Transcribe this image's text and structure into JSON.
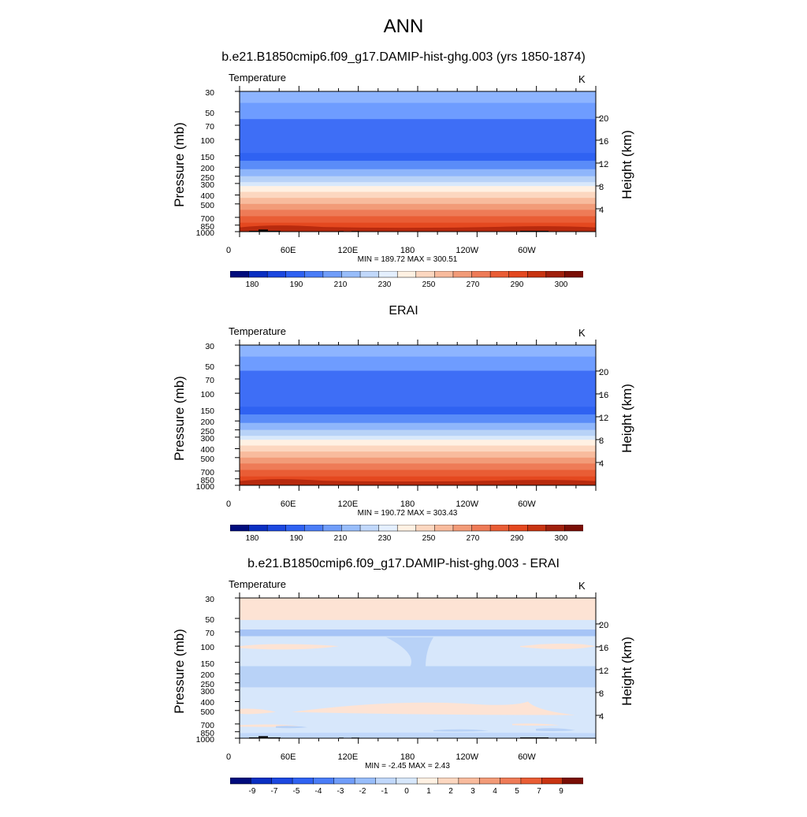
{
  "title": "ANN",
  "chart_data": [
    {
      "type": "heatmap",
      "title": "b.e21.B1850cmip6.f09_g17.DAMIP-hist-ghg.003 (yrs 1850-1874)",
      "variable": "Temperature",
      "units": "K",
      "ylabel": "Pressure (mb)",
      "y2label": "Height (km)",
      "pressure_ticks": [
        "30",
        "50",
        "70",
        "100",
        "150",
        "200",
        "250",
        "300",
        "400",
        "500",
        "700",
        "850",
        "1000"
      ],
      "height_ticks": [
        "20",
        "16",
        "12",
        "8",
        "4"
      ],
      "x_ticks": [
        "0",
        "60E",
        "120E",
        "180",
        "120W",
        "60W"
      ],
      "stats": "MIN = 189.72  MAX = 300.51",
      "colorbar_labels": [
        "180",
        "190",
        "210",
        "230",
        "250",
        "270",
        "290",
        "300"
      ],
      "profile": [
        {
          "p": 30,
          "color": "#8db4ff"
        },
        {
          "p": 40,
          "color": "#6e9cff"
        },
        {
          "p": 60,
          "color": "#3e6ef6"
        },
        {
          "p": 140,
          "color": "#2f62f2"
        },
        {
          "p": 170,
          "color": "#5a8cf8"
        },
        {
          "p": 210,
          "color": "#8fb6fb"
        },
        {
          "p": 250,
          "color": "#b8d2f7"
        },
        {
          "p": 290,
          "color": "#d8e8fb"
        },
        {
          "p": 320,
          "color": "#fff1e3"
        },
        {
          "p": 370,
          "color": "#fcd7c0"
        },
        {
          "p": 430,
          "color": "#f8bb9d"
        },
        {
          "p": 500,
          "color": "#f29b78"
        },
        {
          "p": 580,
          "color": "#ee7b57"
        },
        {
          "p": 680,
          "color": "#e95d35"
        },
        {
          "p": 800,
          "color": "#e4481f"
        },
        {
          "p": 920,
          "color": "#c83411"
        }
      ]
    },
    {
      "type": "heatmap",
      "title": "ERAI",
      "variable": "Temperature",
      "units": "K",
      "ylabel": "Pressure (mb)",
      "y2label": "Height (km)",
      "pressure_ticks": [
        "30",
        "50",
        "70",
        "100",
        "150",
        "200",
        "250",
        "300",
        "400",
        "500",
        "700",
        "850",
        "1000"
      ],
      "height_ticks": [
        "20",
        "16",
        "12",
        "8",
        "4"
      ],
      "x_ticks": [
        "0",
        "60E",
        "120E",
        "180",
        "120W",
        "60W"
      ],
      "stats": "MIN = 190.72  MAX = 303.43",
      "colorbar_labels": [
        "180",
        "190",
        "210",
        "230",
        "250",
        "270",
        "290",
        "300"
      ],
      "profile": [
        {
          "p": 30,
          "color": "#8db4ff"
        },
        {
          "p": 40,
          "color": "#6e9cff"
        },
        {
          "p": 57,
          "color": "#3e6ef6"
        },
        {
          "p": 140,
          "color": "#2f62f2"
        },
        {
          "p": 170,
          "color": "#5a8cf8"
        },
        {
          "p": 210,
          "color": "#8fb6fb"
        },
        {
          "p": 250,
          "color": "#b8d2f7"
        },
        {
          "p": 290,
          "color": "#d8e8fb"
        },
        {
          "p": 320,
          "color": "#fff1e3"
        },
        {
          "p": 370,
          "color": "#fcd7c0"
        },
        {
          "p": 430,
          "color": "#f8bb9d"
        },
        {
          "p": 500,
          "color": "#f29b78"
        },
        {
          "p": 580,
          "color": "#ee7b57"
        },
        {
          "p": 680,
          "color": "#e95d35"
        },
        {
          "p": 800,
          "color": "#e4481f"
        },
        {
          "p": 920,
          "color": "#c83411"
        }
      ]
    },
    {
      "type": "heatmap",
      "title": "b.e21.B1850cmip6.f09_g17.DAMIP-hist-ghg.003 - ERAI",
      "variable": "Temperature",
      "units": "K",
      "ylabel": "Pressure (mb)",
      "y2label": "Height (km)",
      "pressure_ticks": [
        "30",
        "50",
        "70",
        "100",
        "150",
        "200",
        "250",
        "300",
        "400",
        "500",
        "700",
        "850",
        "1000"
      ],
      "height_ticks": [
        "20",
        "16",
        "12",
        "8",
        "4"
      ],
      "x_ticks": [
        "0",
        "60E",
        "120E",
        "180",
        "120W",
        "60W"
      ],
      "stats": "MIN =  -2.45  MAX =   2.43",
      "colorbar_labels": [
        "-9",
        "-7",
        "-5",
        "-4",
        "-3",
        "-2",
        "-1",
        "0",
        "1",
        "2",
        "3",
        "4",
        "5",
        "7",
        "9"
      ],
      "profile": [
        {
          "p": 30,
          "color": "#fde3d4"
        },
        {
          "p": 52,
          "color": "#d7e7fb"
        },
        {
          "p": 66,
          "color": "#a6c4f6"
        },
        {
          "p": 78,
          "color": "#d7e7fb"
        },
        {
          "p": 165,
          "color": "#b8d2f7"
        },
        {
          "p": 280,
          "color": "#d7e7fb"
        }
      ]
    }
  ],
  "colors": {
    "colorbar_temperature": [
      "#000c7d",
      "#0a2fc2",
      "#1c48e0",
      "#2f62f2",
      "#4a7df7",
      "#709df9",
      "#98bdfa",
      "#c1d8fb",
      "#e4efff",
      "#fff1e3",
      "#fcd7c0",
      "#f8bb9d",
      "#f29b78",
      "#ee7b57",
      "#e95d35",
      "#e4481f",
      "#c83411",
      "#a0200c",
      "#7a0e06"
    ],
    "colorbar_difference": [
      "#000c7d",
      "#0a2fc2",
      "#1c48e0",
      "#2f62f2",
      "#4a7df7",
      "#709df9",
      "#98bdfa",
      "#c1d8fb",
      "#d7e7fb",
      "#fff1e3",
      "#fcd7c0",
      "#f8bb9d",
      "#f29b78",
      "#ee7b57",
      "#e95d35",
      "#c83411",
      "#7a0e06"
    ]
  }
}
